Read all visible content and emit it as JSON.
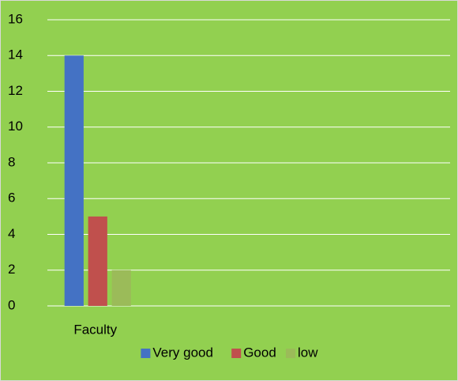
{
  "chart_data": {
    "type": "bar",
    "categories": [
      "Faculty",
      null,
      null,
      null
    ],
    "series": [
      {
        "name": "Very good",
        "color": "#4472c4",
        "values": [
          14,
          null,
          null,
          null
        ]
      },
      {
        "name": "Good",
        "color": "#c0504d",
        "values": [
          5,
          null,
          null,
          null
        ]
      },
      {
        "name": "low",
        "color": "#9bbb59",
        "values": [
          2,
          null,
          null,
          null
        ]
      }
    ],
    "ylim": [
      0,
      16
    ],
    "yticks": [
      0,
      2,
      4,
      6,
      8,
      10,
      12,
      14,
      16
    ],
    "grid": true,
    "background": "#92d050",
    "legend": "bottom"
  }
}
